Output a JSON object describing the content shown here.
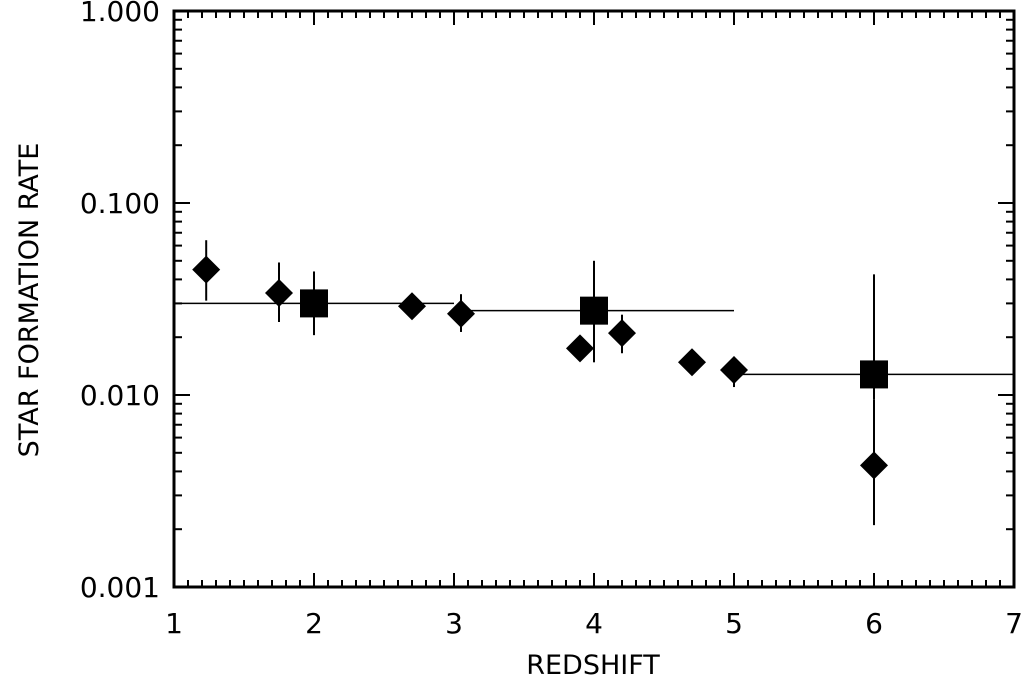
{
  "chart_data": {
    "type": "scatter",
    "title": "",
    "xlabel": "REDSHIFT",
    "ylabel": "STAR FORMATION RATE",
    "xlim": [
      1,
      7
    ],
    "ylim": [
      0.001,
      1.0
    ],
    "y_scale": "log",
    "x_ticks": [
      "1",
      "2",
      "3",
      "4",
      "5",
      "6",
      "7"
    ],
    "y_ticks": [
      "0.001",
      "0.010",
      "0.100",
      "1.000"
    ],
    "grid": false,
    "legend": "none",
    "colors": {
      "ink": "#000000",
      "background": "#ffffff"
    },
    "series": [
      {
        "marker": "diamond",
        "points": [
          {
            "x": 1.23,
            "y": 0.045,
            "y_low": 0.031,
            "y_high": 0.064
          },
          {
            "x": 1.75,
            "y": 0.034,
            "y_low": 0.024,
            "y_high": 0.049
          },
          {
            "x": 2.7,
            "y": 0.029
          },
          {
            "x": 3.05,
            "y": 0.0265,
            "y_low": 0.0213,
            "y_high": 0.0335
          },
          {
            "x": 3.9,
            "y": 0.0175
          },
          {
            "x": 4.2,
            "y": 0.021,
            "y_low": 0.0165,
            "y_high": 0.0262
          },
          {
            "x": 4.7,
            "y": 0.0148
          },
          {
            "x": 5.0,
            "y": 0.0135,
            "y_low": 0.011,
            "y_high": 0.0158
          },
          {
            "x": 6.0,
            "y": 0.0043,
            "y_low": 0.0021,
            "y_high": 0.0095
          }
        ]
      },
      {
        "marker": "square",
        "points": [
          {
            "x": 2.0,
            "y": 0.03,
            "y_low": 0.0205,
            "y_high": 0.044,
            "x_low": 1.0,
            "x_high": 3.0
          },
          {
            "x": 4.0,
            "y": 0.0275,
            "y_low": 0.0148,
            "y_high": 0.05,
            "x_low": 3.0,
            "x_high": 5.0
          },
          {
            "x": 6.0,
            "y": 0.0128,
            "y_low": 0.0095,
            "y_high": 0.0425,
            "x_low": 5.0,
            "x_high": 7.0
          }
        ]
      }
    ]
  }
}
